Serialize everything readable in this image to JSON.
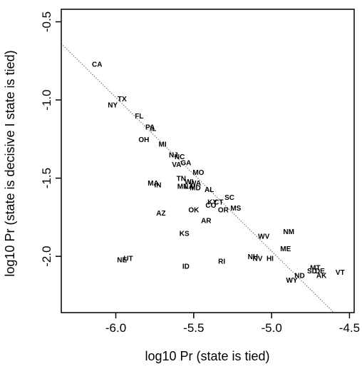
{
  "chart_data": {
    "type": "scatter",
    "title": "",
    "xlabel": "log10 Pr (state is tied)",
    "ylabel": "log10 Pr (state is decisive I state is tied)",
    "xlim": [
      -6.35,
      -4.47
    ],
    "ylim": [
      -2.36,
      -0.42
    ],
    "xticks": [
      {
        "value": -6.0,
        "label": "-6.0"
      },
      {
        "value": -5.5,
        "label": "-5.5"
      },
      {
        "value": -5.0,
        "label": "-5.0"
      },
      {
        "value": -4.5,
        "label": "-4.5"
      }
    ],
    "yticks": [
      {
        "value": -0.5,
        "label": "-0.5"
      },
      {
        "value": -1.0,
        "label": "-1.0"
      },
      {
        "value": -1.5,
        "label": "-1.5"
      },
      {
        "value": -2.0,
        "label": "-2.0"
      }
    ],
    "fit_line": {
      "x": [
        -6.35,
        -4.6
      ],
      "y": [
        -0.64,
        -2.36
      ],
      "style": "dotted"
    },
    "grid": false,
    "legend": "none",
    "points": [
      {
        "label": "CA",
        "x": -6.12,
        "y": -0.77
      },
      {
        "label": "TX",
        "x": -5.96,
        "y": -0.99
      },
      {
        "label": "NY",
        "x": -6.02,
        "y": -1.03
      },
      {
        "label": "FL",
        "x": -5.85,
        "y": -1.1
      },
      {
        "label": "PA",
        "x": -5.78,
        "y": -1.17
      },
      {
        "label": "IL",
        "x": -5.76,
        "y": -1.18
      },
      {
        "label": "OH",
        "x": -5.82,
        "y": -1.25
      },
      {
        "label": "MI",
        "x": -5.7,
        "y": -1.28
      },
      {
        "label": "NJ",
        "x": -5.63,
        "y": -1.35
      },
      {
        "label": "NC",
        "x": -5.59,
        "y": -1.36
      },
      {
        "label": "VA",
        "x": -5.61,
        "y": -1.41
      },
      {
        "label": "GA",
        "x": -5.55,
        "y": -1.4
      },
      {
        "label": "MO",
        "x": -5.47,
        "y": -1.46
      },
      {
        "label": "TN",
        "x": -5.58,
        "y": -1.5
      },
      {
        "label": "MA",
        "x": -5.76,
        "y": -1.53
      },
      {
        "label": "IN",
        "x": -5.73,
        "y": -1.54
      },
      {
        "label": "WI",
        "x": -5.53,
        "y": -1.52
      },
      {
        "label": "WA",
        "x": -5.49,
        "y": -1.53
      },
      {
        "label": "MN",
        "x": -5.57,
        "y": -1.55
      },
      {
        "label": "LA",
        "x": -5.53,
        "y": -1.55
      },
      {
        "label": "MD",
        "x": -5.49,
        "y": -1.56
      },
      {
        "label": "AL",
        "x": -5.4,
        "y": -1.57
      },
      {
        "label": "SC",
        "x": -5.27,
        "y": -1.62
      },
      {
        "label": "KY",
        "x": -5.38,
        "y": -1.65
      },
      {
        "label": "CT",
        "x": -5.34,
        "y": -1.65
      },
      {
        "label": "CO",
        "x": -5.39,
        "y": -1.67
      },
      {
        "label": "MS",
        "x": -5.23,
        "y": -1.69
      },
      {
        "label": "OR",
        "x": -5.31,
        "y": -1.7
      },
      {
        "label": "AZ",
        "x": -5.71,
        "y": -1.72
      },
      {
        "label": "OK",
        "x": -5.5,
        "y": -1.7
      },
      {
        "label": "AR",
        "x": -5.42,
        "y": -1.77
      },
      {
        "label": "KS",
        "x": -5.56,
        "y": -1.85
      },
      {
        "label": "NM",
        "x": -4.89,
        "y": -1.84
      },
      {
        "label": "WV",
        "x": -5.05,
        "y": -1.87
      },
      {
        "label": "ME",
        "x": -4.91,
        "y": -1.95
      },
      {
        "label": "NE",
        "x": -5.96,
        "y": -2.02
      },
      {
        "label": "UT",
        "x": -5.92,
        "y": -2.01
      },
      {
        "label": "ID",
        "x": -5.55,
        "y": -2.06
      },
      {
        "label": "RI",
        "x": -5.32,
        "y": -2.03
      },
      {
        "label": "NH",
        "x": -5.12,
        "y": -2.0
      },
      {
        "label": "NV",
        "x": -5.09,
        "y": -2.01
      },
      {
        "label": "HI",
        "x": -5.01,
        "y": -2.01
      },
      {
        "label": "MT",
        "x": -4.72,
        "y": -2.07
      },
      {
        "label": "SD",
        "x": -4.74,
        "y": -2.09
      },
      {
        "label": "DE",
        "x": -4.69,
        "y": -2.09
      },
      {
        "label": "AK",
        "x": -4.68,
        "y": -2.12
      },
      {
        "label": "VT",
        "x": -4.56,
        "y": -2.1
      },
      {
        "label": "ND",
        "x": -4.82,
        "y": -2.12
      },
      {
        "label": "WY",
        "x": -4.87,
        "y": -2.15
      }
    ]
  }
}
